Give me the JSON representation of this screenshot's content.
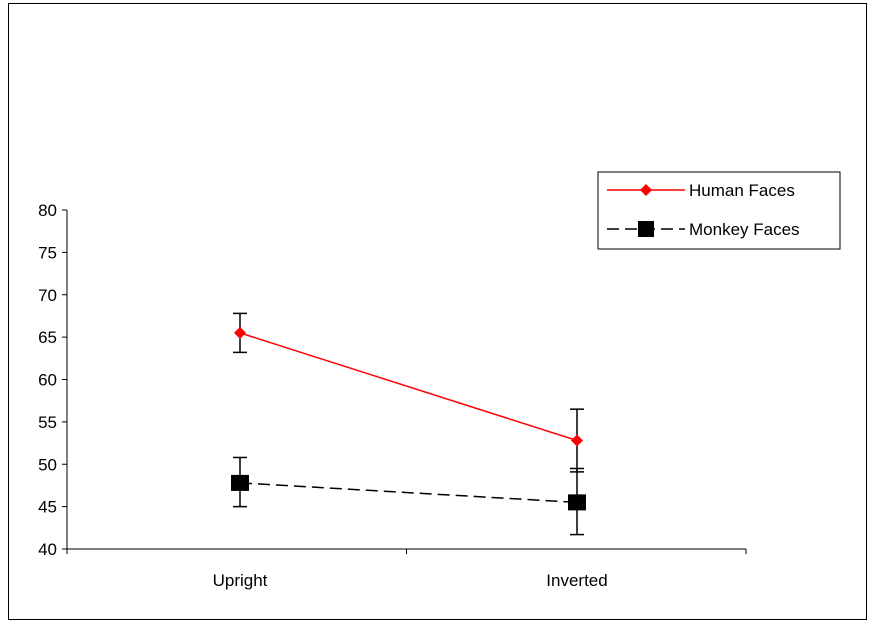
{
  "chart_data": {
    "type": "line",
    "title": "",
    "xlabel": "",
    "ylabel": "",
    "categories": [
      "Upright",
      "Inverted"
    ],
    "ylim": [
      40,
      80
    ],
    "yticks": [
      40,
      45,
      50,
      55,
      60,
      65,
      70,
      75,
      80
    ],
    "legend_position": "top-right",
    "grid": false,
    "series": [
      {
        "name": "Human Faces",
        "values": [
          65.5,
          52.8
        ],
        "error": [
          2.3,
          3.7
        ],
        "color": "#ff0000",
        "marker": "diamond",
        "line_style": "solid"
      },
      {
        "name": "Monkey Faces",
        "values": [
          47.8,
          45.5
        ],
        "error_upper": [
          3.0,
          4.0
        ],
        "error_lower": [
          2.8,
          3.8
        ],
        "color": "#000000",
        "marker": "square",
        "line_style": "dashed"
      }
    ]
  }
}
